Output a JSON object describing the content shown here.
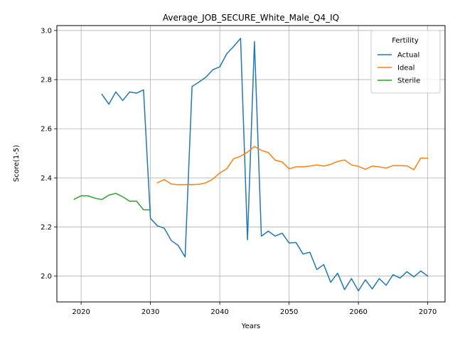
{
  "chart_data": {
    "type": "line",
    "title": "Average_JOB_SECURE_White_Male_Q4_IQ",
    "xlabel": "Years",
    "ylabel": "Score(1-5)",
    "xlim": [
      2016.5,
      2072.5
    ],
    "ylim": [
      1.895,
      3.02
    ],
    "xticks": [
      2020,
      2030,
      2040,
      2050,
      2060,
      2070
    ],
    "yticks": [
      2.0,
      2.2,
      2.4,
      2.6,
      2.8,
      3.0
    ],
    "ytick_labels": [
      "2.0",
      "2.2",
      "2.4",
      "2.6",
      "2.8",
      "3.0"
    ],
    "grid": true,
    "legend": {
      "title": "Fertility",
      "placement": "top-right"
    },
    "series": [
      {
        "name": "Actual",
        "color": "#1f77b4",
        "x": [
          2023,
          2024,
          2025,
          2026,
          2027,
          2028,
          2029,
          2030,
          2031,
          2032,
          2033,
          2034,
          2035,
          2036,
          2037,
          2038,
          2039,
          2040,
          2041,
          2042,
          2043,
          2044,
          2045,
          2046,
          2047,
          2048,
          2049,
          2050,
          2051,
          2052,
          2053,
          2054,
          2055,
          2056,
          2057,
          2058,
          2059,
          2060,
          2061,
          2062,
          2063,
          2064,
          2065,
          2066,
          2067,
          2068,
          2069,
          2070
        ],
        "y": [
          2.74,
          2.7,
          2.75,
          2.715,
          2.75,
          2.745,
          2.758,
          2.235,
          2.205,
          2.195,
          2.145,
          2.125,
          2.078,
          2.772,
          2.79,
          2.81,
          2.84,
          2.852,
          2.905,
          2.935,
          2.968,
          2.148,
          2.955,
          2.163,
          2.183,
          2.163,
          2.175,
          2.135,
          2.137,
          2.09,
          2.097,
          2.027,
          2.047,
          1.975,
          2.012,
          1.945,
          1.99,
          1.94,
          1.985,
          1.948,
          1.99,
          1.963,
          2.006,
          1.992,
          2.018,
          1.997,
          2.021,
          2.0
        ]
      },
      {
        "name": "Ideal",
        "color": "#ff7f0e",
        "x": [
          2031,
          2032,
          2033,
          2034,
          2035,
          2036,
          2037,
          2038,
          2039,
          2040,
          2041,
          2042,
          2043,
          2044,
          2045,
          2046,
          2047,
          2048,
          2049,
          2050,
          2051,
          2052,
          2053,
          2054,
          2055,
          2056,
          2057,
          2058,
          2059,
          2060,
          2061,
          2062,
          2063,
          2064,
          2065,
          2066,
          2067,
          2068,
          2069,
          2070
        ],
        "y": [
          2.38,
          2.393,
          2.375,
          2.372,
          2.373,
          2.373,
          2.374,
          2.38,
          2.395,
          2.42,
          2.437,
          2.478,
          2.488,
          2.505,
          2.528,
          2.512,
          2.503,
          2.472,
          2.465,
          2.437,
          2.445,
          2.445,
          2.448,
          2.453,
          2.448,
          2.455,
          2.467,
          2.473,
          2.453,
          2.447,
          2.435,
          2.448,
          2.445,
          2.44,
          2.45,
          2.45,
          2.449,
          2.433,
          2.481,
          2.48
        ]
      },
      {
        "name": "Sterile",
        "color": "#2ca02c",
        "x": [
          2019,
          2020,
          2021,
          2022,
          2023,
          2024,
          2025,
          2026,
          2027,
          2028,
          2029,
          2030
        ],
        "y": [
          2.313,
          2.327,
          2.327,
          2.317,
          2.312,
          2.33,
          2.337,
          2.323,
          2.305,
          2.305,
          2.27,
          2.27
        ]
      }
    ]
  }
}
